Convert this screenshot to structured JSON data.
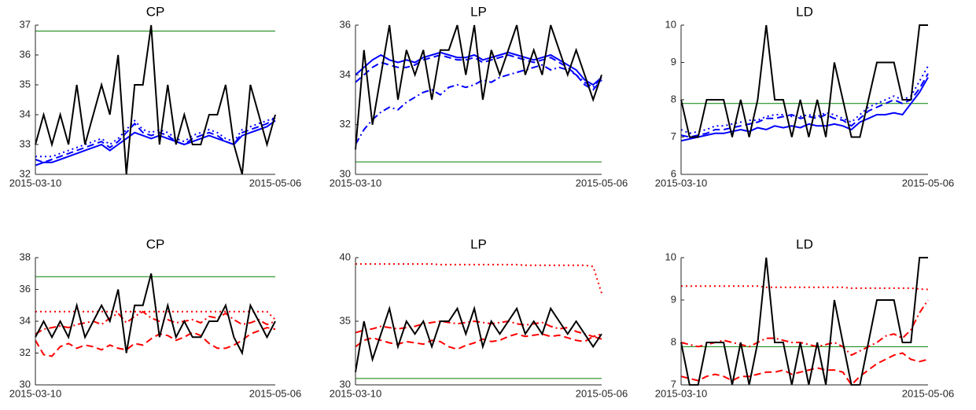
{
  "chart_data": [
    {
      "type": "line",
      "title": "CP",
      "ylim": [
        32,
        37
      ],
      "yticks": [
        32,
        33,
        34,
        35,
        36,
        37
      ],
      "categories": [
        "2015-03-10",
        null,
        null,
        null,
        null,
        null,
        null,
        null,
        null,
        null,
        null,
        null,
        null,
        null,
        null,
        null,
        null,
        null,
        null,
        null,
        null,
        null,
        null,
        null,
        null,
        null,
        null,
        null,
        null,
        "2015-05-06"
      ],
      "hlines": [
        {
          "value": 36.8,
          "color": "#008000"
        }
      ],
      "series": [
        {
          "color": "#0000ff",
          "dash": "solid",
          "values": [
            32.3,
            32.4,
            32.4,
            32.5,
            32.6,
            32.7,
            32.8,
            32.9,
            33.0,
            32.8,
            33.0,
            33.2,
            33.4,
            33.3,
            33.2,
            33.3,
            33.2,
            33.1,
            33.0,
            33.1,
            33.2,
            33.3,
            33.2,
            33.1,
            33.0,
            33.3,
            33.4,
            33.5,
            33.6,
            33.8
          ]
        },
        {
          "color": "#0000ff",
          "dash": "dashed",
          "values": [
            32.5,
            32.4,
            32.5,
            32.6,
            32.7,
            32.8,
            32.9,
            33.0,
            33.1,
            32.9,
            33.1,
            33.4,
            33.7,
            33.4,
            33.3,
            33.4,
            33.3,
            33.1,
            33.0,
            33.2,
            33.3,
            33.4,
            33.3,
            33.1,
            33.0,
            33.4,
            33.5,
            33.6,
            33.7,
            33.9
          ]
        },
        {
          "color": "#0000ff",
          "dash": "dotted",
          "values": [
            32.6,
            32.6,
            32.6,
            32.7,
            32.8,
            32.9,
            33.0,
            33.1,
            33.2,
            33.0,
            33.2,
            33.5,
            33.8,
            33.5,
            33.4,
            33.5,
            33.4,
            33.2,
            33.1,
            33.3,
            33.4,
            33.5,
            33.4,
            33.2,
            33.1,
            33.5,
            33.6,
            33.7,
            33.8,
            33.9
          ]
        },
        {
          "color": "#000000",
          "dash": "solid",
          "values": [
            33,
            34,
            33,
            34,
            33,
            35,
            33,
            34,
            35,
            34,
            36,
            32,
            35,
            35,
            37,
            33,
            35,
            33,
            34,
            33,
            33,
            34,
            34,
            35,
            33,
            32,
            35,
            34,
            33,
            34
          ]
        }
      ]
    },
    {
      "type": "line",
      "title": "LP",
      "ylim": [
        30,
        36
      ],
      "yticks": [
        30,
        32,
        34,
        36
      ],
      "categories": [
        "2015-03-10",
        null,
        null,
        null,
        null,
        null,
        null,
        null,
        null,
        null,
        null,
        null,
        null,
        null,
        null,
        null,
        null,
        null,
        null,
        null,
        null,
        null,
        null,
        null,
        null,
        null,
        null,
        null,
        null,
        "2015-05-06"
      ],
      "hlines": [
        {
          "value": 30.5,
          "color": "#008000"
        }
      ],
      "series": [
        {
          "color": "#0000ff",
          "dash": "solid",
          "values": [
            34.0,
            34.3,
            34.6,
            34.8,
            34.6,
            34.5,
            34.6,
            34.5,
            34.7,
            34.8,
            34.9,
            34.8,
            34.7,
            34.7,
            34.8,
            34.6,
            34.7,
            34.8,
            34.9,
            34.8,
            34.7,
            34.6,
            34.7,
            34.8,
            34.6,
            34.4,
            34.2,
            33.8,
            33.6,
            33.9
          ]
        },
        {
          "color": "#0000ff",
          "dash": "dashed",
          "values": [
            33.7,
            34.0,
            34.3,
            34.5,
            34.4,
            34.3,
            34.3,
            34.4,
            34.6,
            34.7,
            34.8,
            34.7,
            34.6,
            34.6,
            34.7,
            34.5,
            34.6,
            34.7,
            34.8,
            34.7,
            34.6,
            34.5,
            34.6,
            34.7,
            34.5,
            34.3,
            34.0,
            33.6,
            33.4,
            33.8
          ]
        },
        {
          "color": "#0000ff",
          "dash": "dashdot",
          "values": [
            31.2,
            31.8,
            32.2,
            32.5,
            32.7,
            32.6,
            32.9,
            33.1,
            33.3,
            33.4,
            33.2,
            33.5,
            33.6,
            33.5,
            33.6,
            33.8,
            33.7,
            33.9,
            34.0,
            34.1,
            34.2,
            34.3,
            34.4,
            34.2,
            34.3,
            34.2,
            34.0,
            33.7,
            33.5,
            33.9
          ]
        },
        {
          "color": "#000000",
          "dash": "solid",
          "values": [
            31,
            35,
            32,
            34,
            36,
            33,
            35,
            34,
            35,
            33,
            35,
            35,
            36,
            34,
            36,
            33,
            35,
            34,
            35,
            36,
            34,
            35,
            34,
            36,
            35,
            34,
            35,
            34,
            33,
            34
          ]
        }
      ]
    },
    {
      "type": "line",
      "title": "LD",
      "ylim": [
        6,
        10
      ],
      "yticks": [
        6,
        7,
        8,
        9,
        10
      ],
      "categories": [
        "2015-03-10",
        null,
        null,
        null,
        null,
        null,
        null,
        null,
        null,
        null,
        null,
        null,
        null,
        null,
        null,
        null,
        null,
        null,
        null,
        null,
        null,
        null,
        null,
        null,
        null,
        null,
        null,
        null,
        null,
        "2015-05-06"
      ],
      "hlines": [
        {
          "value": 7.9,
          "color": "#008000"
        }
      ],
      "series": [
        {
          "color": "#0000ff",
          "dash": "solid",
          "values": [
            6.9,
            6.95,
            7.0,
            7.05,
            7.1,
            7.1,
            7.15,
            7.2,
            7.15,
            7.25,
            7.2,
            7.3,
            7.25,
            7.3,
            7.25,
            7.35,
            7.3,
            7.3,
            7.35,
            7.3,
            7.2,
            7.4,
            7.5,
            7.6,
            7.6,
            7.65,
            7.6,
            7.9,
            8.2,
            8.6
          ]
        },
        {
          "color": "#0000ff",
          "dash": "dashed",
          "values": [
            7.05,
            7.0,
            7.05,
            7.1,
            7.2,
            7.2,
            7.25,
            7.3,
            7.35,
            7.4,
            7.5,
            7.5,
            7.55,
            7.6,
            7.5,
            7.55,
            7.5,
            7.6,
            7.5,
            7.45,
            7.3,
            7.5,
            7.7,
            7.8,
            7.9,
            8.0,
            7.9,
            8.0,
            8.3,
            8.7
          ]
        },
        {
          "color": "#0000ff",
          "dash": "dotted",
          "values": [
            7.2,
            7.1,
            7.15,
            7.2,
            7.3,
            7.3,
            7.35,
            7.4,
            7.45,
            7.45,
            7.55,
            7.6,
            7.6,
            7.55,
            7.55,
            7.6,
            7.55,
            7.65,
            7.6,
            7.5,
            7.4,
            7.6,
            7.8,
            7.9,
            8.0,
            8.1,
            8.0,
            8.1,
            8.5,
            8.9
          ]
        },
        {
          "color": "#000000",
          "dash": "solid",
          "values": [
            8,
            7,
            7,
            8,
            8,
            8,
            7,
            8,
            7,
            8,
            10,
            8,
            8,
            7,
            8,
            7,
            8,
            7,
            9,
            8,
            7,
            7,
            8,
            9,
            9,
            9,
            8,
            8,
            10,
            10
          ]
        }
      ]
    },
    {
      "type": "line",
      "title": "CP",
      "ylim": [
        30,
        38
      ],
      "yticks": [
        30,
        32,
        34,
        36,
        38
      ],
      "categories": [
        "2015-03-10",
        null,
        null,
        null,
        null,
        null,
        null,
        null,
        null,
        null,
        null,
        null,
        null,
        null,
        null,
        null,
        null,
        null,
        null,
        null,
        null,
        null,
        null,
        null,
        null,
        null,
        null,
        null,
        null,
        "2015-05-06"
      ],
      "hlines": [
        {
          "value": 36.8,
          "color": "#008000"
        }
      ],
      "series": [
        {
          "color": "#ff0000",
          "dash": "dotted",
          "values": [
            34.6,
            34.6,
            34.6,
            34.6,
            34.6,
            34.6,
            34.6,
            34.6,
            34.6,
            34.6,
            34.6,
            34.6,
            34.6,
            34.6,
            34.6,
            34.6,
            34.6,
            34.6,
            34.6,
            34.6,
            34.6,
            34.6,
            34.6,
            34.6,
            34.6,
            34.6,
            34.6,
            34.6,
            34.6,
            34.1
          ]
        },
        {
          "color": "#ff0000",
          "dash": "dashdot",
          "values": [
            33.2,
            33.5,
            33.6,
            33.7,
            33.6,
            33.8,
            33.9,
            34.0,
            33.8,
            34.2,
            34.5,
            33.9,
            34.3,
            34.6,
            34.2,
            34.0,
            34.1,
            33.9,
            34.0,
            34.1,
            33.9,
            34.3,
            34.2,
            34.5,
            34.1,
            33.8,
            33.9,
            34.1,
            33.8,
            34.0
          ]
        },
        {
          "color": "#ff0000",
          "dash": "dashed",
          "values": [
            32.8,
            31.9,
            31.8,
            32.4,
            32.6,
            32.3,
            32.5,
            32.4,
            32.2,
            32.5,
            32.3,
            32.2,
            32.6,
            32.5,
            32.9,
            33.2,
            33.1,
            32.8,
            33.0,
            33.3,
            33.1,
            32.6,
            32.3,
            32.3,
            32.5,
            32.8,
            33.2,
            33.4,
            33.6,
            33.5
          ]
        },
        {
          "color": "#000000",
          "dash": "solid",
          "values": [
            33,
            34,
            33,
            34,
            33,
            35,
            33,
            34,
            35,
            34,
            36,
            32,
            35,
            35,
            37,
            33,
            35,
            33,
            34,
            33,
            33,
            34,
            34,
            35,
            33,
            32,
            35,
            34,
            33,
            34
          ]
        }
      ]
    },
    {
      "type": "line",
      "title": "LP",
      "ylim": [
        30,
        40
      ],
      "yticks": [
        30,
        35,
        40
      ],
      "categories": [
        "2015-03-10",
        null,
        null,
        null,
        null,
        null,
        null,
        null,
        null,
        null,
        null,
        null,
        null,
        null,
        null,
        null,
        null,
        null,
        null,
        null,
        null,
        null,
        null,
        null,
        null,
        null,
        null,
        null,
        null,
        "2015-05-06"
      ],
      "hlines": [
        {
          "value": 30.5,
          "color": "#008000"
        }
      ],
      "series": [
        {
          "color": "#ff0000",
          "dash": "dotted",
          "values": [
            39.5,
            39.5,
            39.5,
            39.5,
            39.5,
            39.5,
            39.5,
            39.5,
            39.5,
            39.5,
            39.45,
            39.45,
            39.45,
            39.45,
            39.45,
            39.45,
            39.45,
            39.45,
            39.45,
            39.45,
            39.4,
            39.4,
            39.4,
            39.4,
            39.4,
            39.4,
            39.4,
            39.4,
            39.3,
            37.2
          ]
        },
        {
          "color": "#ff0000",
          "dash": "dashdot",
          "values": [
            34.1,
            34.3,
            34.4,
            34.6,
            34.5,
            34.4,
            34.5,
            34.6,
            34.8,
            34.9,
            35.0,
            34.9,
            34.8,
            34.9,
            35.0,
            34.9,
            34.8,
            34.9,
            35.0,
            34.8,
            34.7,
            34.8,
            34.9,
            34.6,
            34.4,
            34.5,
            34.2,
            34.0,
            33.8,
            34.0
          ]
        },
        {
          "color": "#ff0000",
          "dash": "dashed",
          "values": [
            33.0,
            33.5,
            33.7,
            33.5,
            33.3,
            33.2,
            33.4,
            33.3,
            33.2,
            33.5,
            33.4,
            33.0,
            32.8,
            33.1,
            33.3,
            33.6,
            33.4,
            33.5,
            33.8,
            34.0,
            33.8,
            33.9,
            34.0,
            33.8,
            33.9,
            33.7,
            33.5,
            33.4,
            33.8,
            33.6
          ]
        },
        {
          "color": "#000000",
          "dash": "solid",
          "values": [
            31,
            35,
            32,
            34,
            36,
            33,
            35,
            34,
            35,
            33,
            35,
            35,
            36,
            34,
            36,
            33,
            35,
            34,
            35,
            36,
            34,
            35,
            34,
            36,
            35,
            34,
            35,
            34,
            33,
            34
          ]
        }
      ]
    },
    {
      "type": "line",
      "title": "LD",
      "ylim": [
        7,
        10
      ],
      "yticks": [
        7,
        8,
        9,
        10
      ],
      "categories": [
        "2015-03-10",
        null,
        null,
        null,
        null,
        null,
        null,
        null,
        null,
        null,
        null,
        null,
        null,
        null,
        null,
        null,
        null,
        null,
        null,
        null,
        null,
        null,
        null,
        null,
        null,
        null,
        null,
        null,
        null,
        "2015-05-06"
      ],
      "hlines": [
        {
          "value": 7.9,
          "color": "#008000"
        }
      ],
      "series": [
        {
          "color": "#ff0000",
          "dash": "dotted",
          "values": [
            9.33,
            9.33,
            9.33,
            9.33,
            9.33,
            9.33,
            9.33,
            9.33,
            9.33,
            9.33,
            9.3,
            9.3,
            9.3,
            9.3,
            9.3,
            9.3,
            9.3,
            9.3,
            9.3,
            9.3,
            9.28,
            9.28,
            9.28,
            9.28,
            9.28,
            9.28,
            9.28,
            9.28,
            9.26,
            9.25
          ]
        },
        {
          "color": "#ff0000",
          "dash": "dashdot",
          "values": [
            8.0,
            7.95,
            7.9,
            7.95,
            8.0,
            8.05,
            8.0,
            7.95,
            7.9,
            8.0,
            8.1,
            8.1,
            8.05,
            8.0,
            8.0,
            7.95,
            7.9,
            7.95,
            8.0,
            7.9,
            7.7,
            7.8,
            7.9,
            8.0,
            8.15,
            8.2,
            8.1,
            8.3,
            8.7,
            9.0
          ]
        },
        {
          "color": "#ff0000",
          "dash": "dashed",
          "values": [
            7.2,
            7.15,
            7.1,
            7.2,
            7.25,
            7.2,
            7.1,
            7.2,
            7.2,
            7.25,
            7.3,
            7.3,
            7.35,
            7.25,
            7.3,
            7.35,
            7.4,
            7.35,
            7.35,
            7.3,
            7.0,
            7.2,
            7.35,
            7.5,
            7.6,
            7.7,
            7.75,
            7.6,
            7.55,
            7.6
          ]
        },
        {
          "color": "#000000",
          "dash": "solid",
          "values": [
            8,
            7,
            7,
            8,
            8,
            8,
            7,
            8,
            7,
            8,
            10,
            8,
            8,
            7,
            8,
            7,
            8,
            7,
            9,
            8,
            7,
            7,
            8,
            9,
            9,
            9,
            8,
            8,
            10,
            10
          ]
        }
      ]
    }
  ]
}
